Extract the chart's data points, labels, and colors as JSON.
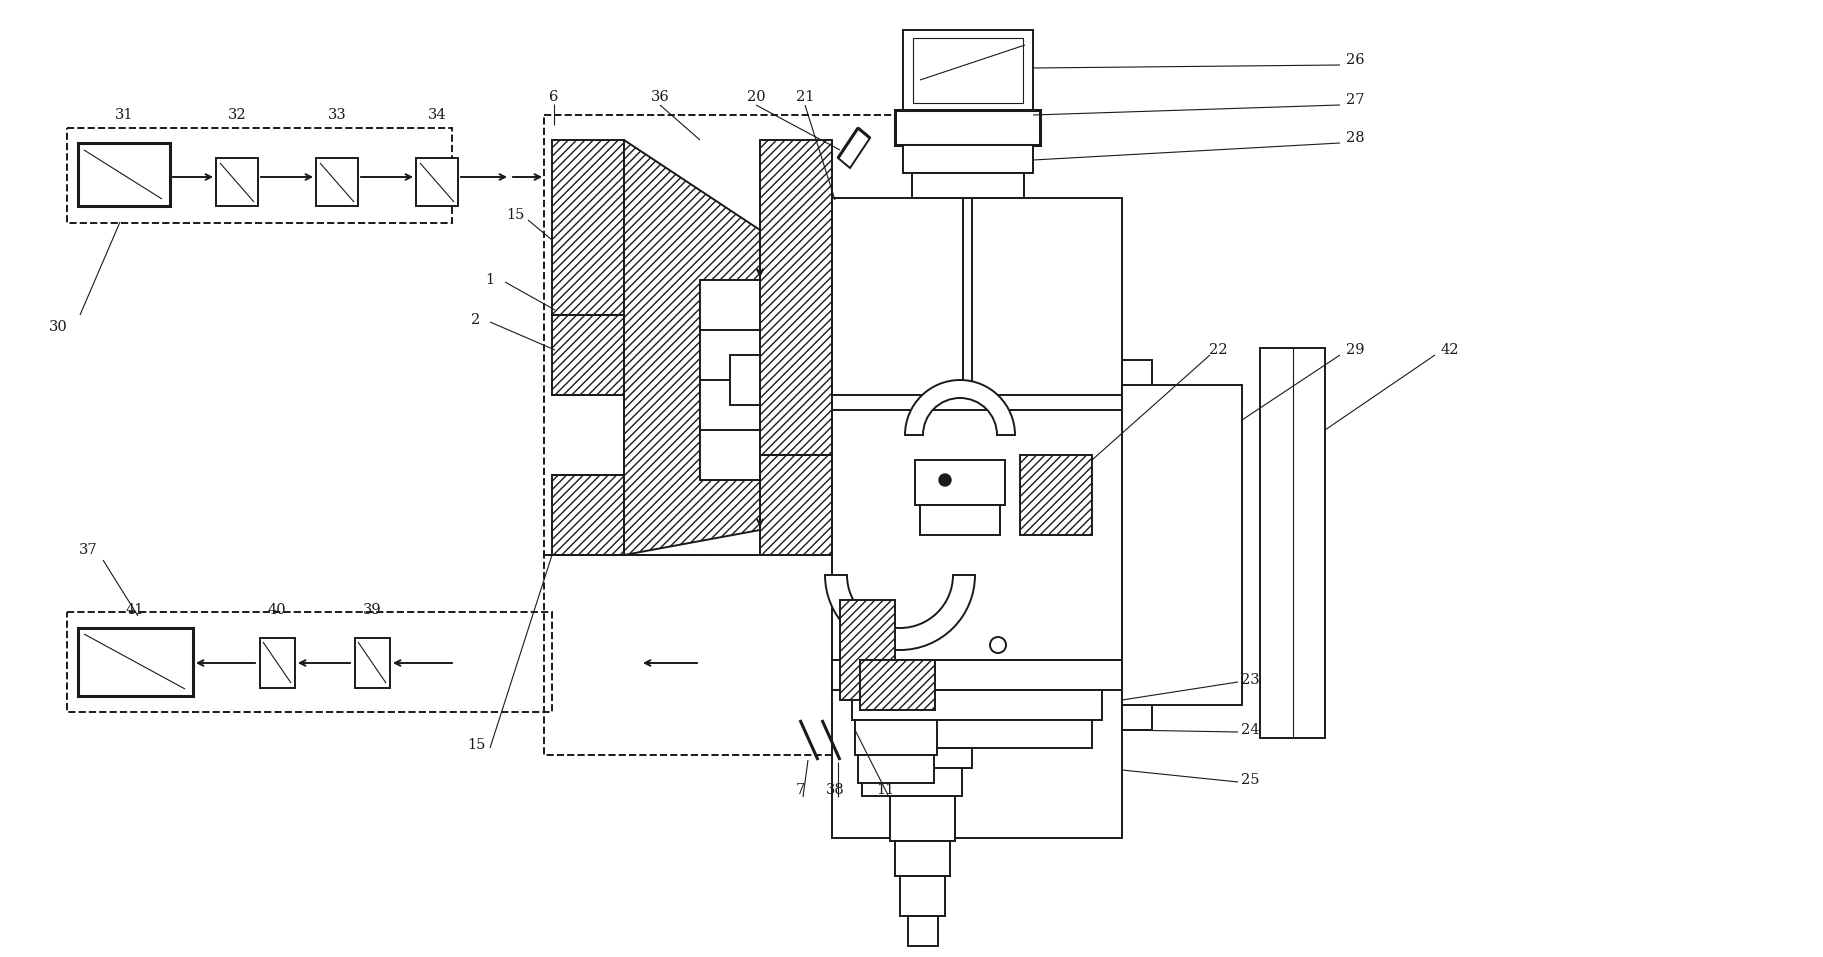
{
  "bg_color": "#ffffff",
  "lc": "#1a1a1a",
  "figsize": [
    18.24,
    9.57
  ],
  "dpi": 100,
  "lw": 1.4,
  "lw_thick": 2.2,
  "lw_thin": 0.8,
  "fs": 10.5
}
